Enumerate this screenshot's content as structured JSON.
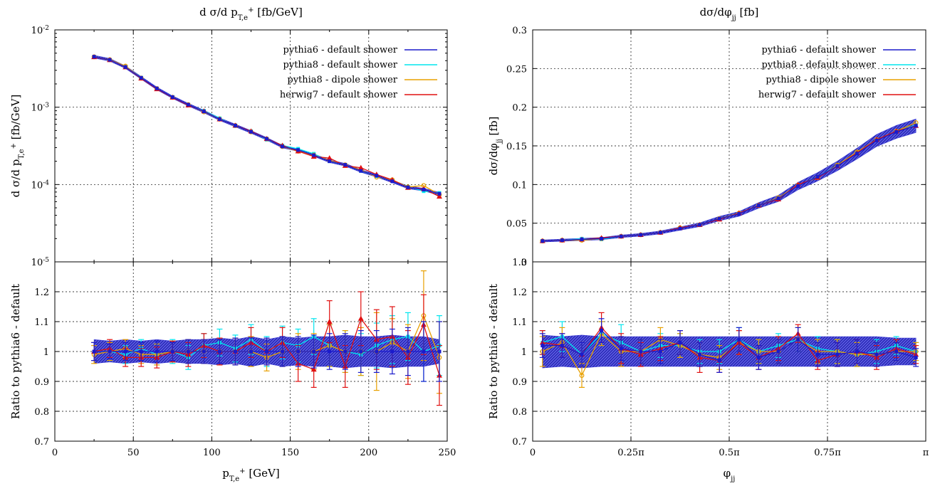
{
  "colors": {
    "pythia6_default": "#1a1acc",
    "pythia8_default": "#00e5ee",
    "pythia8_dipole": "#e8a000",
    "herwig7_default": "#e01010",
    "band_fill": "#3b3bd6"
  },
  "chart_data": [
    {
      "id": "pt_main",
      "type": "line",
      "title_html": "d &sigma;/d p<tspan baseline-shift=\"sub\" font-size=\"10\">T,e</tspan><tspan baseline-shift=\"super\" font-size=\"10\">+</tspan> [fb/GeV]",
      "ylabel_html": "d &sigma;/d p<tspan baseline-shift=\"sub\" font-size=\"10\">T,e</tspan><tspan baseline-shift=\"super\" font-size=\"10\">+</tspan> [fb/GeV]",
      "yscale": "log",
      "ylim": [
        1e-05,
        0.01
      ],
      "xlim": [
        0,
        250
      ],
      "yticks_html": [
        "10<tspan baseline-shift=\"super\" font-size=\"9\">-5</tspan>",
        "10<tspan baseline-shift=\"super\" font-size=\"9\">-4</tspan>",
        "10<tspan baseline-shift=\"super\" font-size=\"9\">-3</tspan>",
        "10<tspan baseline-shift=\"super\" font-size=\"9\">-2</tspan>"
      ],
      "yticks": [
        1e-05,
        0.0001,
        0.001,
        0.01
      ],
      "grid": true,
      "legend": "top-right",
      "x": [
        25,
        35,
        45,
        55,
        65,
        75,
        85,
        95,
        105,
        115,
        125,
        135,
        145,
        155,
        165,
        175,
        185,
        195,
        205,
        215,
        225,
        235,
        245
      ],
      "series": [
        {
          "name": "pythia6 - default shower",
          "color_key": "pythia6_default",
          "values": [
            0.0045,
            0.0041,
            0.0033,
            0.0024,
            0.00175,
            0.00135,
            0.00108,
            0.00088,
            0.0007,
            0.00058,
            0.00048,
            0.00039,
            0.00031,
            0.00028,
            0.00024,
            0.0002,
            0.00018,
            0.00015,
            0.00013,
            0.00011,
            9.2e-05,
            8.6e-05,
            7.6e-05
          ]
        },
        {
          "name": "pythia8 - default shower",
          "color_key": "pythia8_default",
          "values": [
            0.00452,
            0.00405,
            0.00335,
            0.00242,
            0.00172,
            0.00136,
            0.00106,
            0.0009,
            0.00072,
            0.00057,
            0.00049,
            0.00038,
            0.00032,
            0.00029,
            0.00025,
            0.0002,
            0.00018,
            0.00015,
            0.000128,
            0.000112,
            9.4e-05,
            8.2e-05,
            7.8e-05
          ]
        },
        {
          "name": "pythia8 - dipole shower",
          "color_key": "pythia8_dipole",
          "values": [
            0.00448,
            0.00412,
            0.0034,
            0.00238,
            0.00174,
            0.00134,
            0.00108,
            0.00087,
            0.0007,
            0.00058,
            0.00048,
            0.00039,
            0.00031,
            0.00027,
            0.00024,
            0.000205,
            0.00018,
            0.000155,
            0.000125,
            0.000115,
            9.3e-05,
            9.7e-05,
            7.4e-05
          ]
        },
        {
          "name": "herwig7 - default shower",
          "color_key": "herwig7_default",
          "values": [
            0.00446,
            0.00408,
            0.0033,
            0.00236,
            0.00172,
            0.00134,
            0.00106,
            0.00089,
            0.0007,
            0.00058,
            0.00049,
            0.00039,
            0.00032,
            0.00027,
            0.00023,
            0.00022,
            0.000175,
            0.000165,
            0.000135,
            0.000115,
            9.1e-05,
            8.8e-05,
            7e-05
          ]
        }
      ],
      "band_rel": 0.04
    },
    {
      "id": "pt_ratio",
      "type": "line",
      "ylabel": "Ratio to pythia6 - default",
      "xlabel_html": "p<tspan baseline-shift=\"sub\" font-size=\"10\">T,e</tspan><tspan baseline-shift=\"super\" font-size=\"10\">+</tspan> [GeV]",
      "xlim": [
        0,
        250
      ],
      "ylim": [
        0.7,
        1.3
      ],
      "xticks": [
        0,
        50,
        100,
        150,
        200,
        250
      ],
      "xtick_labels": [
        "0",
        "50",
        "100",
        "150",
        "200",
        "250"
      ],
      "yticks": [
        0.7,
        0.8,
        0.9,
        1,
        1.1,
        1.2
      ],
      "ytick_labels": [
        "0.7",
        "0.8",
        "0.9",
        "1",
        "1.1",
        "1.2"
      ],
      "grid": true,
      "x": [
        25,
        35,
        45,
        55,
        65,
        75,
        85,
        95,
        105,
        115,
        125,
        135,
        145,
        155,
        165,
        175,
        185,
        195,
        205,
        215,
        225,
        235,
        245
      ],
      "band_half": [
        0.04,
        0.035,
        0.04,
        0.035,
        0.04,
        0.035,
        0.04,
        0.04,
        0.045,
        0.04,
        0.05,
        0.04,
        0.05,
        0.045,
        0.05,
        0.05,
        0.055,
        0.05,
        0.05,
        0.055,
        0.05,
        0.05,
        0.04
      ],
      "series": [
        {
          "name": "pythia6 - default shower",
          "color_key": "pythia6_default",
          "values": [
            1,
            1,
            1,
            1,
            1,
            1,
            1,
            1,
            1,
            1,
            1,
            1,
            1,
            1,
            1,
            1,
            1,
            1,
            1,
            1,
            1,
            1,
            1
          ],
          "err": [
            0.03,
            0.025,
            0.03,
            0.03,
            0.035,
            0.03,
            0.04,
            0.04,
            0.04,
            0.045,
            0.045,
            0.045,
            0.05,
            0.05,
            0.055,
            0.06,
            0.06,
            0.07,
            0.07,
            0.075,
            0.08,
            0.1,
            0.1
          ]
        },
        {
          "name": "pythia8 - default shower",
          "color_key": "pythia8_default",
          "values": [
            1.0,
            1.0,
            0.99,
            1.01,
            0.99,
            1.0,
            0.98,
            1.02,
            1.03,
            1.01,
            1.04,
            1.0,
            1.03,
            1.02,
            1.05,
            1.02,
            1.0,
            0.99,
            1.02,
            1.04,
            1.05,
            1.0,
            1.02
          ],
          "err": [
            0.03,
            0.03,
            0.03,
            0.03,
            0.035,
            0.04,
            0.04,
            0.04,
            0.045,
            0.045,
            0.05,
            0.05,
            0.055,
            0.055,
            0.06,
            0.07,
            0.07,
            0.07,
            0.075,
            0.08,
            0.08,
            0.1,
            0.1
          ]
        },
        {
          "name": "pythia8 - dipole shower",
          "color_key": "pythia8_dipole",
          "values": [
            0.99,
            1.0,
            1.01,
            0.99,
            0.99,
            1.0,
            1.0,
            1.0,
            1.0,
            1.0,
            1.0,
            0.98,
            1.0,
            1.0,
            1.0,
            1.02,
            1.0,
            1.0,
            1.0,
            1.03,
            1.0,
            1.12,
            0.98
          ],
          "err": [
            0.03,
            0.03,
            0.03,
            0.03,
            0.035,
            0.035,
            0.04,
            0.04,
            0.045,
            0.045,
            0.05,
            0.045,
            0.05,
            0.06,
            0.06,
            0.07,
            0.07,
            0.08,
            0.13,
            0.08,
            0.09,
            0.15,
            0.12
          ]
        },
        {
          "name": "herwig7 - default shower",
          "color_key": "herwig7_default",
          "values": [
            1.0,
            1.01,
            0.98,
            0.98,
            0.98,
            1.0,
            0.99,
            1.02,
            1.0,
            1.0,
            1.03,
            1.0,
            1.03,
            0.96,
            0.94,
            1.1,
            0.95,
            1.11,
            1.04,
            1.05,
            0.98,
            1.09,
            0.92
          ],
          "err": [
            0.03,
            0.03,
            0.03,
            0.03,
            0.035,
            0.035,
            0.04,
            0.04,
            0.045,
            0.045,
            0.05,
            0.045,
            0.05,
            0.06,
            0.06,
            0.07,
            0.07,
            0.09,
            0.1,
            0.1,
            0.09,
            0.1,
            0.1
          ]
        }
      ]
    },
    {
      "id": "phi_main",
      "type": "line",
      "title_html": "d&sigma;/d&phi;<tspan baseline-shift=\"sub\" font-size=\"10\">jj</tspan> [fb]",
      "ylabel_html": "d&sigma;/d&phi;<tspan baseline-shift=\"sub\" font-size=\"10\">jj</tspan> [fb]",
      "xlim": [
        0,
        3.14159
      ],
      "ylim": [
        0,
        0.3
      ],
      "yticks": [
        0.05,
        0.1,
        0.15,
        0.2,
        0.25,
        0.3
      ],
      "ytick_labels": [
        "0.05",
        "0.1",
        "0.15",
        "0.2",
        "0.25",
        "0.3"
      ],
      "bottom_tick_label": "0",
      "grid": true,
      "legend": "top-right",
      "x": [
        0.0785,
        0.2356,
        0.3927,
        0.5498,
        0.7069,
        0.8639,
        1.021,
        1.1781,
        1.3352,
        1.4923,
        1.6493,
        1.8064,
        1.9635,
        2.1206,
        2.2777,
        2.4347,
        2.5918,
        2.7489,
        2.906,
        3.063
      ],
      "series": [
        {
          "name": "pythia6 - default shower",
          "color_key": "pythia6_default",
          "values": [
            0.027,
            0.028,
            0.029,
            0.03,
            0.033,
            0.035,
            0.038,
            0.043,
            0.048,
            0.056,
            0.062,
            0.073,
            0.082,
            0.098,
            0.11,
            0.124,
            0.14,
            0.157,
            0.168,
            0.176
          ]
        },
        {
          "name": "pythia8 - default shower",
          "color_key": "pythia8_default",
          "values": [
            0.027,
            0.028,
            0.03,
            0.029,
            0.033,
            0.035,
            0.038,
            0.044,
            0.048,
            0.056,
            0.063,
            0.073,
            0.082,
            0.099,
            0.11,
            0.125,
            0.142,
            0.158,
            0.169,
            0.177
          ]
        },
        {
          "name": "pythia8 - dipole shower",
          "color_key": "pythia8_dipole",
          "values": [
            0.027,
            0.028,
            0.028,
            0.03,
            0.033,
            0.035,
            0.038,
            0.044,
            0.048,
            0.056,
            0.063,
            0.073,
            0.083,
            0.099,
            0.109,
            0.125,
            0.142,
            0.158,
            0.169,
            0.18
          ]
        },
        {
          "name": "herwig7 - default shower",
          "color_key": "herwig7_default",
          "values": [
            0.027,
            0.028,
            0.029,
            0.031,
            0.033,
            0.035,
            0.038,
            0.044,
            0.048,
            0.055,
            0.063,
            0.073,
            0.081,
            0.1,
            0.109,
            0.124,
            0.141,
            0.158,
            0.169,
            0.176
          ]
        }
      ],
      "band_rel": 0.05
    },
    {
      "id": "phi_ratio",
      "type": "line",
      "ylabel": "Ratio to pythia6 - default",
      "xlabel_html": "&phi;<tspan baseline-shift=\"sub\" font-size=\"10\">jj</tspan>",
      "xlim": [
        0,
        3.14159
      ],
      "ylim": [
        0.7,
        1.3
      ],
      "xticks": [
        0,
        0.7854,
        1.5708,
        2.3562,
        3.14159
      ],
      "xtick_labels": [
        "0",
        "0.25π",
        "0.5π",
        "0.75π",
        "π"
      ],
      "yticks": [
        0.7,
        0.8,
        0.9,
        1,
        1.1,
        1.2,
        1.3
      ],
      "ytick_labels": [
        "0.7",
        "0.8",
        "0.9",
        "1",
        "1.1",
        "1.2",
        "1.3"
      ],
      "grid": true,
      "x": [
        0.0785,
        0.2356,
        0.3927,
        0.5498,
        0.7069,
        0.8639,
        1.021,
        1.1781,
        1.3352,
        1.4923,
        1.6493,
        1.8064,
        1.9635,
        2.1206,
        2.2777,
        2.4347,
        2.5918,
        2.7489,
        2.906,
        3.063
      ],
      "band_half": [
        0.055,
        0.05,
        0.055,
        0.05,
        0.05,
        0.05,
        0.05,
        0.05,
        0.05,
        0.05,
        0.05,
        0.05,
        0.05,
        0.05,
        0.05,
        0.05,
        0.05,
        0.05,
        0.045,
        0.045
      ],
      "series": [
        {
          "name": "pythia6 - default shower",
          "color_key": "pythia6_default",
          "values": [
            1.02,
            1.02,
            0.99,
            1.07,
            1.01,
            1.0,
            1.0,
            1.03,
            0.99,
            0.97,
            1.04,
            0.98,
            1.0,
            1.04,
            0.99,
            0.99,
            1.0,
            0.99,
            1.0,
            0.98
          ],
          "err": [
            0.04,
            0.04,
            0.04,
            0.04,
            0.04,
            0.04,
            0.04,
            0.04,
            0.04,
            0.04,
            0.04,
            0.04,
            0.04,
            0.04,
            0.04,
            0.04,
            0.04,
            0.04,
            0.03,
            0.03
          ]
        },
        {
          "name": "pythia8 - default shower",
          "color_key": "pythia8_default",
          "values": [
            1.03,
            1.05,
            0.99,
            1.06,
            1.03,
            1.0,
            1.02,
            1.02,
            1.0,
            1.0,
            1.04,
            1.0,
            1.02,
            1.04,
            1.01,
            1.0,
            0.99,
            1.0,
            1.02,
            1.0
          ],
          "err": [
            0.04,
            0.05,
            0.04,
            0.04,
            0.06,
            0.04,
            0.04,
            0.04,
            0.04,
            0.04,
            0.04,
            0.04,
            0.04,
            0.04,
            0.04,
            0.04,
            0.04,
            0.04,
            0.03,
            0.03
          ]
        },
        {
          "name": "pythia8 - dipole shower",
          "color_key": "pythia8_dipole",
          "values": [
            1.0,
            1.03,
            0.92,
            1.06,
            1.0,
            1.0,
            1.04,
            1.02,
            0.99,
            0.98,
            1.03,
            1.0,
            1.0,
            1.04,
            1.0,
            1.0,
            0.99,
            0.99,
            1.0,
            1.0
          ],
          "err": [
            0.05,
            0.05,
            0.04,
            0.04,
            0.05,
            0.04,
            0.04,
            0.04,
            0.04,
            0.04,
            0.04,
            0.04,
            0.04,
            0.04,
            0.04,
            0.04,
            0.04,
            0.04,
            0.03,
            0.03
          ]
        },
        {
          "name": "herwig7 - default shower",
          "color_key": "herwig7_default",
          "values": [
            1.03,
            1.02,
            0.99,
            1.08,
            1.01,
            0.99,
            1.01,
            1.03,
            0.98,
            0.97,
            1.03,
            0.98,
            1.01,
            1.06,
            0.97,
            0.99,
            1.0,
            0.98,
            1.01,
            0.99
          ],
          "err": [
            0.04,
            0.04,
            0.04,
            0.05,
            0.05,
            0.04,
            0.04,
            0.04,
            0.05,
            0.04,
            0.04,
            0.04,
            0.04,
            0.03,
            0.03,
            0.04,
            0.04,
            0.04,
            0.03,
            0.03
          ]
        }
      ]
    }
  ]
}
